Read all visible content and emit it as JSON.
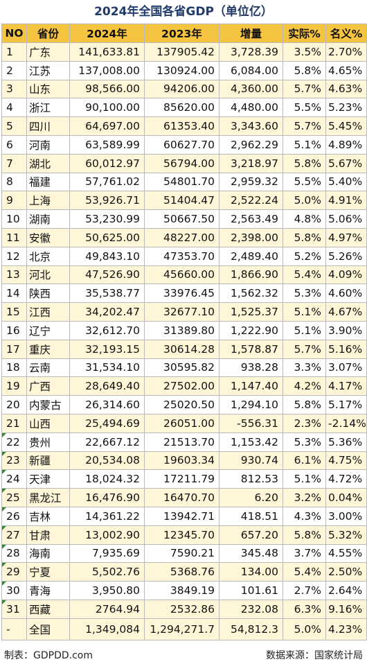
{
  "title": "2024年全国各省GDP（单位亿）",
  "headers": [
    "NO",
    "省份",
    "2024年",
    "2023年",
    "增量",
    "实际%",
    "名义%"
  ],
  "rows": [
    {
      "no": "1",
      "province": "广东",
      "gdp2024": "141,633.81",
      "gdp2023": "137905.42",
      "increase": "3,728.39",
      "real": "3.5%",
      "nominal": "2.70%"
    },
    {
      "no": "2",
      "province": "江苏",
      "gdp2024": "137,008.00",
      "gdp2023": "130924.00",
      "increase": "6,084.00",
      "real": "5.8%",
      "nominal": "4.65%"
    },
    {
      "no": "3",
      "province": "山东",
      "gdp2024": "98,566.00",
      "gdp2023": "94206.00",
      "increase": "4,360.00",
      "real": "5.7%",
      "nominal": "4.63%"
    },
    {
      "no": "4",
      "province": "浙江",
      "gdp2024": "90,100.00",
      "gdp2023": "85620.00",
      "increase": "4,480.00",
      "real": "5.5%",
      "nominal": "5.23%"
    },
    {
      "no": "5",
      "province": "四川",
      "gdp2024": "64,697.00",
      "gdp2023": "61353.40",
      "increase": "3,343.60",
      "real": "5.7%",
      "nominal": "5.45%"
    },
    {
      "no": "6",
      "province": "河南",
      "gdp2024": "63,589.99",
      "gdp2023": "60627.70",
      "increase": "2,962.29",
      "real": "5.1%",
      "nominal": "4.89%"
    },
    {
      "no": "7",
      "province": "湖北",
      "gdp2024": "60,012.97",
      "gdp2023": "56794.00",
      "increase": "3,218.97",
      "real": "5.8%",
      "nominal": "5.67%"
    },
    {
      "no": "8",
      "province": "福建",
      "gdp2024": "57,761.02",
      "gdp2023": "54801.70",
      "increase": "2,959.32",
      "real": "5.5%",
      "nominal": "5.40%"
    },
    {
      "no": "9",
      "province": "上海",
      "gdp2024": "53,926.71",
      "gdp2023": "51404.47",
      "increase": "2,522.24",
      "real": "5.0%",
      "nominal": "4.91%"
    },
    {
      "no": "10",
      "province": "湖南",
      "gdp2024": "53,230.99",
      "gdp2023": "50667.50",
      "increase": "2,563.49",
      "real": "4.8%",
      "nominal": "5.06%"
    },
    {
      "no": "11",
      "province": "安徽",
      "gdp2024": "50,625.00",
      "gdp2023": "48227.00",
      "increase": "2,398.00",
      "real": "5.8%",
      "nominal": "4.97%"
    },
    {
      "no": "12",
      "province": "北京",
      "gdp2024": "49,843.10",
      "gdp2023": "47353.70",
      "increase": "2,489.40",
      "real": "5.2%",
      "nominal": "5.26%"
    },
    {
      "no": "13",
      "province": "河北",
      "gdp2024": "47,526.90",
      "gdp2023": "45660.00",
      "increase": "1,866.90",
      "real": "5.4%",
      "nominal": "4.09%"
    },
    {
      "no": "14",
      "province": "陕西",
      "gdp2024": "35,538.77",
      "gdp2023": "33976.45",
      "increase": "1,562.32",
      "real": "5.3%",
      "nominal": "4.60%"
    },
    {
      "no": "15",
      "province": "江西",
      "gdp2024": "34,202.47",
      "gdp2023": "32677.10",
      "increase": "1,525.37",
      "real": "5.1%",
      "nominal": "4.67%"
    },
    {
      "no": "16",
      "province": "辽宁",
      "gdp2024": "32,612.70",
      "gdp2023": "31389.80",
      "increase": "1,222.90",
      "real": "5.1%",
      "nominal": "3.90%"
    },
    {
      "no": "17",
      "province": "重庆",
      "gdp2024": "32,193.15",
      "gdp2023": "30614.28",
      "increase": "1,578.87",
      "real": "5.7%",
      "nominal": "5.16%"
    },
    {
      "no": "18",
      "province": "云南",
      "gdp2024": "31,534.10",
      "gdp2023": "30595.82",
      "increase": "938.28",
      "real": "3.3%",
      "nominal": "3.07%"
    },
    {
      "no": "19",
      "province": "广西",
      "gdp2024": "28,649.40",
      "gdp2023": "27502.00",
      "increase": "1,147.40",
      "real": "4.2%",
      "nominal": "4.17%"
    },
    {
      "no": "20",
      "province": "内蒙古",
      "gdp2024": "26,314.60",
      "gdp2023": "25020.50",
      "increase": "1,294.10",
      "real": "5.8%",
      "nominal": "5.17%"
    },
    {
      "no": "21",
      "province": "山西",
      "gdp2024": "25,494.69",
      "gdp2023": "26051.00",
      "increase": "-556.31",
      "real": "2.3%",
      "nominal": "-2.14%"
    },
    {
      "no": "22",
      "province": "贵州",
      "gdp2024": "22,667.12",
      "gdp2023": "21513.70",
      "increase": "1,153.42",
      "real": "5.3%",
      "nominal": "5.36%"
    },
    {
      "no": "23",
      "province": "新疆",
      "gdp2024": "20,534.08",
      "gdp2023": "19603.34",
      "increase": "930.74",
      "real": "6.1%",
      "nominal": "4.75%"
    },
    {
      "no": "24",
      "province": "天津",
      "gdp2024": "18,024.32",
      "gdp2023": "17211.79",
      "increase": "812.53",
      "real": "5.1%",
      "nominal": "4.72%"
    },
    {
      "no": "25",
      "province": "黑龙江",
      "gdp2024": "16,476.90",
      "gdp2023": "16470.70",
      "increase": "6.20",
      "real": "3.2%",
      "nominal": "0.04%"
    },
    {
      "no": "26",
      "province": "吉林",
      "gdp2024": "14,361.22",
      "gdp2023": "13942.71",
      "increase": "418.51",
      "real": "4.3%",
      "nominal": "3.00%"
    },
    {
      "no": "27",
      "province": "甘肃",
      "gdp2024": "13,002.90",
      "gdp2023": "12345.70",
      "increase": "657.20",
      "real": "5.8%",
      "nominal": "5.32%"
    },
    {
      "no": "28",
      "province": "海南",
      "gdp2024": "7,935.69",
      "gdp2023": "7590.21",
      "increase": "345.48",
      "real": "3.7%",
      "nominal": "4.55%"
    },
    {
      "no": "29",
      "province": "宁夏",
      "gdp2024": "5,502.76",
      "gdp2023": "5368.76",
      "increase": "134.00",
      "real": "5.4%",
      "nominal": "2.50%"
    },
    {
      "no": "30",
      "province": "青海",
      "gdp2024": "3,950.80",
      "gdp2023": "3849.19",
      "increase": "101.61",
      "real": "2.7%",
      "nominal": "2.64%"
    },
    {
      "no": "31",
      "province": "西藏",
      "gdp2024": "2764.94",
      "gdp2023": "2532.86",
      "increase": "232.08",
      "real": "6.3%",
      "nominal": "9.16%"
    }
  ],
  "total": {
    "no": "-",
    "province": "全国",
    "gdp2024": "1,349,084",
    "gdp2023": "1,294,271.7",
    "increase": "54,812.3",
    "real": "5.0%",
    "nominal": "4.23%"
  },
  "footer": {
    "left": "制表：GDPDD.com",
    "right": "数据来源：国家统计局"
  },
  "colors": {
    "header_bg": "#f5c542",
    "odd_row_bg": "#fff6d8",
    "title_color": "#1f3a6b",
    "flag_color": "#2e8b2e"
  }
}
